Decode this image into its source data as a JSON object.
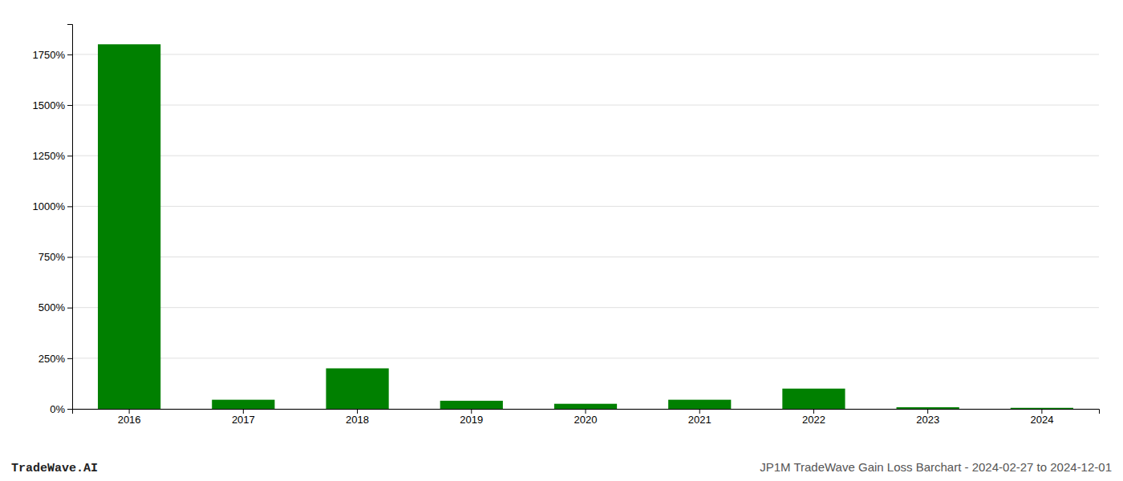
{
  "chart_data": {
    "type": "bar",
    "categories": [
      "2016",
      "2017",
      "2018",
      "2019",
      "2020",
      "2021",
      "2022",
      "2023",
      "2024"
    ],
    "values": [
      1800,
      45,
      200,
      40,
      25,
      45,
      100,
      8,
      5
    ],
    "color": "#008000",
    "ylim": [
      0,
      1900
    ],
    "yticks": [
      {
        "value": 0,
        "label": "0%"
      },
      {
        "value": 250,
        "label": "250%"
      },
      {
        "value": 500,
        "label": "500%"
      },
      {
        "value": 750,
        "label": "750%"
      },
      {
        "value": 1000,
        "label": "1000%"
      },
      {
        "value": 1250,
        "label": "1250%"
      },
      {
        "value": 1500,
        "label": "1500%"
      },
      {
        "value": 1750,
        "label": "1750%"
      }
    ],
    "grid": true,
    "annotations": [
      "TradeWave.AI",
      "JP1M TradeWave Gain Loss Barchart - 2024-02-27 to 2024-12-01"
    ]
  }
}
